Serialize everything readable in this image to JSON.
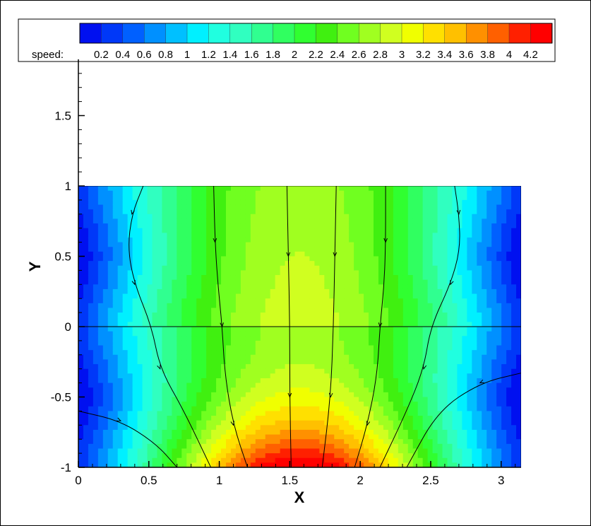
{
  "chart_data": {
    "type": "heatmap",
    "title": "",
    "xlabel": "X",
    "ylabel": "Y",
    "xlim": [
      0,
      3.14159
    ],
    "ylim": [
      -1,
      1.9
    ],
    "plot_region_y": [
      -1,
      1
    ],
    "x_ticks": [
      "0",
      "0.5",
      "1",
      "1.5",
      "2",
      "2.5",
      "3"
    ],
    "x_tick_values": [
      0,
      0.5,
      1,
      1.5,
      2,
      2.5,
      3
    ],
    "y_ticks": [
      "-1",
      "-0.5",
      "0",
      "0.5",
      "1",
      "1.5"
    ],
    "y_tick_values": [
      -1,
      -0.5,
      0,
      0.5,
      1,
      1.5
    ],
    "legend": {
      "title": "speed:",
      "placement": "top",
      "labels": [
        "0.2",
        "0.4",
        "0.6",
        "0.8",
        "1",
        "1.2",
        "1.4",
        "1.6",
        "1.8",
        "2",
        "2.2",
        "2.4",
        "2.6",
        "2.8",
        "3",
        "3.2",
        "3.4",
        "3.6",
        "3.8",
        "4",
        "4.2"
      ],
      "colors": [
        "#0010f0",
        "#0038f8",
        "#0060ff",
        "#0090ff",
        "#00c0ff",
        "#00f0ff",
        "#20ffe0",
        "#30ffc0",
        "#30ff90",
        "#30ff60",
        "#30ff30",
        "#40f010",
        "#70ff20",
        "#a0ff20",
        "#d0ff20",
        "#f0ff00",
        "#ffe000",
        "#ffc000",
        "#ff9000",
        "#ff6000",
        "#ff2000",
        "#ff0000"
      ]
    },
    "streamlines": [
      [
        [
          0.46,
          1.0
        ],
        [
          0.38,
          0.8
        ],
        [
          0.35,
          0.55
        ],
        [
          0.4,
          0.3
        ],
        [
          0.52,
          0.0
        ],
        [
          0.58,
          -0.3
        ],
        [
          0.75,
          -0.6
        ],
        [
          0.94,
          -1.0
        ]
      ],
      [
        [
          0.96,
          1.0
        ],
        [
          0.97,
          0.6
        ],
        [
          0.99,
          0.3
        ],
        [
          1.02,
          0.0
        ],
        [
          1.04,
          -0.35
        ],
        [
          1.1,
          -0.7
        ],
        [
          1.2,
          -1.0
        ]
      ],
      [
        [
          1.48,
          1.0
        ],
        [
          1.49,
          0.5
        ],
        [
          1.5,
          0.0
        ],
        [
          1.5,
          -0.5
        ],
        [
          1.51,
          -1.0
        ]
      ],
      [
        [
          1.83,
          1.0
        ],
        [
          1.82,
          0.5
        ],
        [
          1.81,
          0.0
        ],
        [
          1.79,
          -0.5
        ],
        [
          1.73,
          -1.0
        ]
      ],
      [
        [
          2.18,
          1.0
        ],
        [
          2.18,
          0.6
        ],
        [
          2.17,
          0.3
        ],
        [
          2.14,
          0.0
        ],
        [
          2.12,
          -0.35
        ],
        [
          2.05,
          -0.7
        ],
        [
          1.96,
          -1.0
        ]
      ],
      [
        [
          2.67,
          1.0
        ],
        [
          2.7,
          0.8
        ],
        [
          2.71,
          0.55
        ],
        [
          2.64,
          0.3
        ],
        [
          2.5,
          0.0
        ],
        [
          2.45,
          -0.3
        ],
        [
          2.33,
          -0.6
        ],
        [
          2.14,
          -1.0
        ]
      ],
      [
        [
          0.0,
          -0.6
        ],
        [
          0.3,
          -0.67
        ],
        [
          0.55,
          -0.83
        ],
        [
          0.7,
          -1.0
        ]
      ],
      [
        [
          3.14,
          -0.33
        ],
        [
          2.85,
          -0.4
        ],
        [
          2.55,
          -0.6
        ],
        [
          2.33,
          -1.0
        ]
      ]
    ]
  }
}
